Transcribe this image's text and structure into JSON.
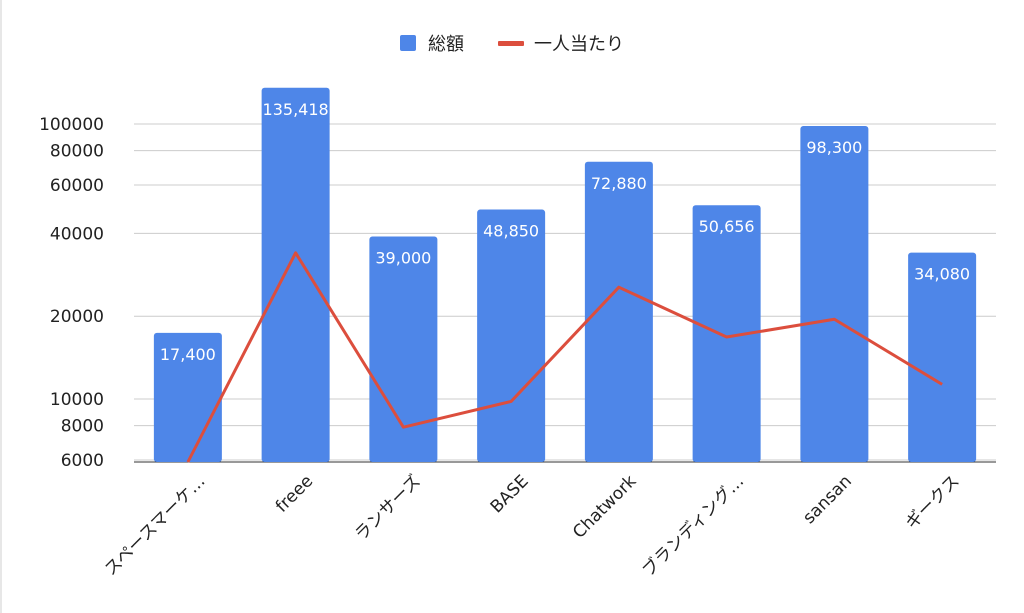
{
  "chart_data": {
    "type": "bar",
    "scale": "log",
    "categories": [
      "スペースマーケ…",
      "freee",
      "ランサーズ",
      "BASE",
      "Chatwork",
      "ブランディング…",
      "sansan",
      "ギークス"
    ],
    "series": [
      {
        "name": "総額",
        "kind": "bar",
        "color": "#4e86e8",
        "values": [
          17400,
          135418,
          39000,
          48850,
          72880,
          50656,
          98300,
          34080
        ],
        "labels": [
          "17,400",
          "135,418",
          "39,000",
          "48,850",
          "72,880",
          "50,656",
          "98,300",
          "34,080"
        ]
      },
      {
        "name": "一人当たり",
        "kind": "line",
        "color": "#dc4e3d",
        "values": [
          5900,
          34000,
          7900,
          9800,
          25500,
          16800,
          19500,
          11300
        ]
      }
    ],
    "yticks": [
      6000,
      8000,
      10000,
      20000,
      40000,
      60000,
      80000,
      100000
    ],
    "ylim": [
      6000,
      140000
    ],
    "grid": true,
    "legend": "top-center"
  }
}
